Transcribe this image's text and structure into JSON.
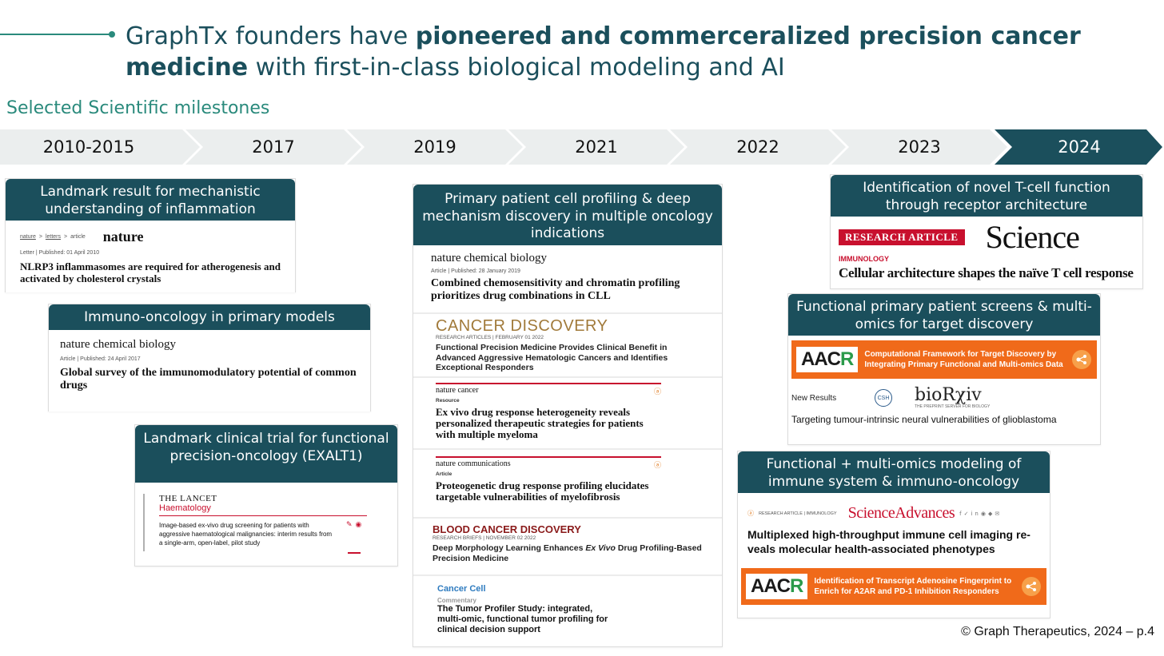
{
  "header": {
    "title_part1": "GraphTx founders have ",
    "title_bold1": "pioneered and commerceralized precision cancer medicine",
    "title_part2": " with first-in-class biological modeling and AI",
    "subtitle": "Selected Scientific milestones"
  },
  "timeline": [
    "2010-2015",
    "2017",
    "2019",
    "2021",
    "2022",
    "2023",
    "2024"
  ],
  "colors": {
    "teal": "#1b4f5c",
    "accent": "#2a8a7c",
    "aacr_orange": "#f06a1a",
    "lancet_red": "#c8102e",
    "science_red": "#c8102e"
  },
  "col1": {
    "card1": {
      "head": "Landmark result for mechanistic understanding of inflammation",
      "breadcrumb": [
        "nature",
        ">",
        "letters",
        ">",
        "article"
      ],
      "journal": "nature",
      "meta": "Letter  |  Published: 01 April 2010",
      "headline": "NLRP3 inflammasomes are required for atherogenesis and activated by cholesterol crystals"
    },
    "card2": {
      "head": "Immuno-oncology in primary models",
      "journal": "nature chemical biology",
      "meta": "Article  |  Published: 24 April 2017",
      "headline": "Global survey of the immunomodulatory potential of common drugs"
    },
    "card3": {
      "head": "Landmark clinical trial for functional precision-oncology (EXALT1)",
      "journal_line1": "THE LANCET",
      "journal_line2": "Haematology",
      "headline": "Image-based ex-vivo drug screening for patients with aggressive haematological malignancies: interim results from a single-arm, open-label, pilot study"
    }
  },
  "col2": {
    "head": "Primary patient cell profiling & deep mechanism discovery in multiple oncology indications",
    "c1": {
      "journal": "nature chemical biology",
      "meta": "Article  |  Published: 28 January 2019",
      "headline": "Combined chemosensitivity and chromatin profiling prioritizes drug combinations in CLL"
    },
    "c2": {
      "journal": "CANCER DISCOVERY",
      "meta": "RESEARCH ARTICLES  |  FEBRUARY 01 2022",
      "headline": "Functional Precision Medicine Provides Clinical Benefit in Advanced Aggressive Hematologic Cancers and Identifies Exceptional Responders"
    },
    "c3": {
      "journal": "nature cancer",
      "meta": "Resource",
      "headline": "Ex vivo drug response heterogeneity reveals personalized therapeutic strategies for patients with multiple myeloma"
    },
    "c4": {
      "journal": "nature communications",
      "meta": "Article",
      "headline": "Proteogenetic drug response profiling elucidates targetable vulnerabilities of myelofibrosis"
    },
    "c5": {
      "journal": "BLOOD CANCER DISCOVERY",
      "meta": "RESEARCH BRIEFS  |  NOVEMBER 02 2022",
      "headline_pre": "Deep Morphology Learning Enhances ",
      "headline_em": "Ex Vivo",
      "headline_post": " Drug Profiling-Based Precision Medicine"
    },
    "c6": {
      "journal": "Cancer Cell",
      "meta": "Commentary",
      "headline": "The Tumor Profiler Study: integrated, multi-omic, functional tumor profiling for clinical decision support"
    }
  },
  "col3": {
    "card1": {
      "head": "Identification of novel T-cell function through receptor architecture",
      "badge": "RESEARCH ARTICLE",
      "journal": "Science",
      "section": "IMMUNOLOGY",
      "headline": "Cellular architecture shapes the naïve T cell response"
    },
    "card2": {
      "head": "Functional primary patient screens & multi-omics for target discovery",
      "aacr_text": "Computational Framework for Target Discovery by Integrating Primary Functional and Multi-omics Data",
      "new_results": "New Results",
      "csh": "CSH",
      "biorxiv": "bioRχiv",
      "biorxiv_tag": "THE PREPRINT SERVER FOR BIOLOGY",
      "headline": "Targeting tumour-intrinsic neural vulnerabilities of glioblastoma"
    },
    "card3": {
      "head": "Functional + multi-omics modeling of immune system & immuno-oncology",
      "meta": "RESEARCH ARTICLE  |  IMMUNOLOGY",
      "journal": "ScienceAdvances",
      "headline": "Multiplexed high-throughput immune cell imaging re-veals molecular health-associated phenotypes",
      "aacr_text": "Identification of Transcript Adenosine Fingerprint to Enrich for A2AR and PD-1 Inhibition Responders"
    }
  },
  "footer": "© Graph Therapeutics, 2024 –  p.4"
}
